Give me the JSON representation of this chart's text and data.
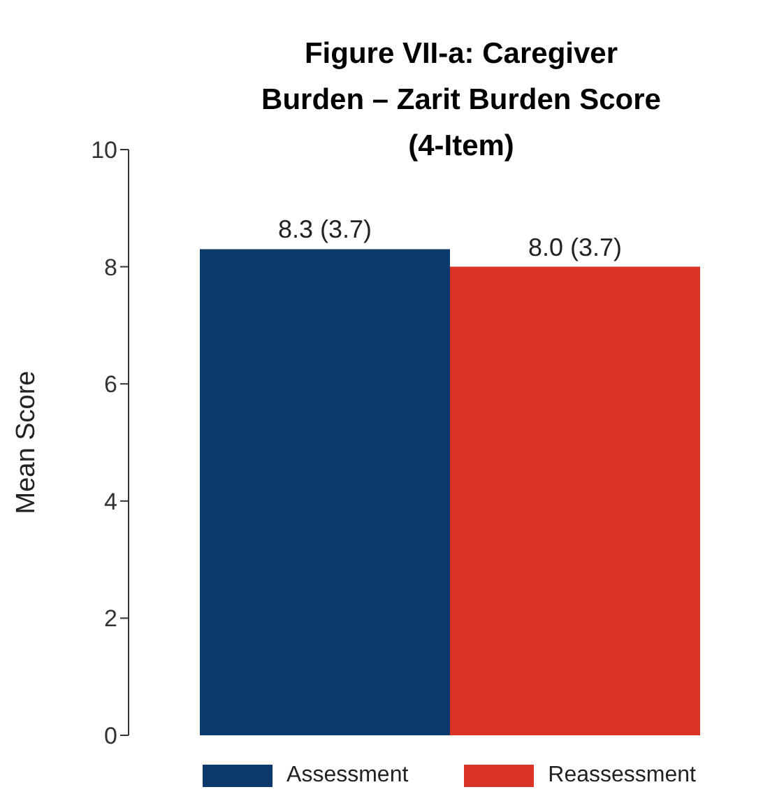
{
  "chart_data": {
    "type": "bar",
    "title": "Figure VII-a: Caregiver Burden – Zarit Burden Score (4-Item)",
    "ylabel": "Mean Score",
    "categories": [
      null
    ],
    "series": [
      {
        "name": "Assessment",
        "color": "#0c3a6d",
        "values": [
          8.3
        ],
        "value_labels": [
          "8.3 (3.7)"
        ]
      },
      {
        "name": "Reassessment",
        "color": "#d93426",
        "values": [
          8.0
        ],
        "value_labels": [
          "8.0 (3.7)"
        ]
      }
    ],
    "ylim": [
      0,
      10
    ],
    "yticks": [
      0,
      2,
      4,
      6,
      8,
      10
    ],
    "grid": false,
    "legend": "bottom"
  }
}
